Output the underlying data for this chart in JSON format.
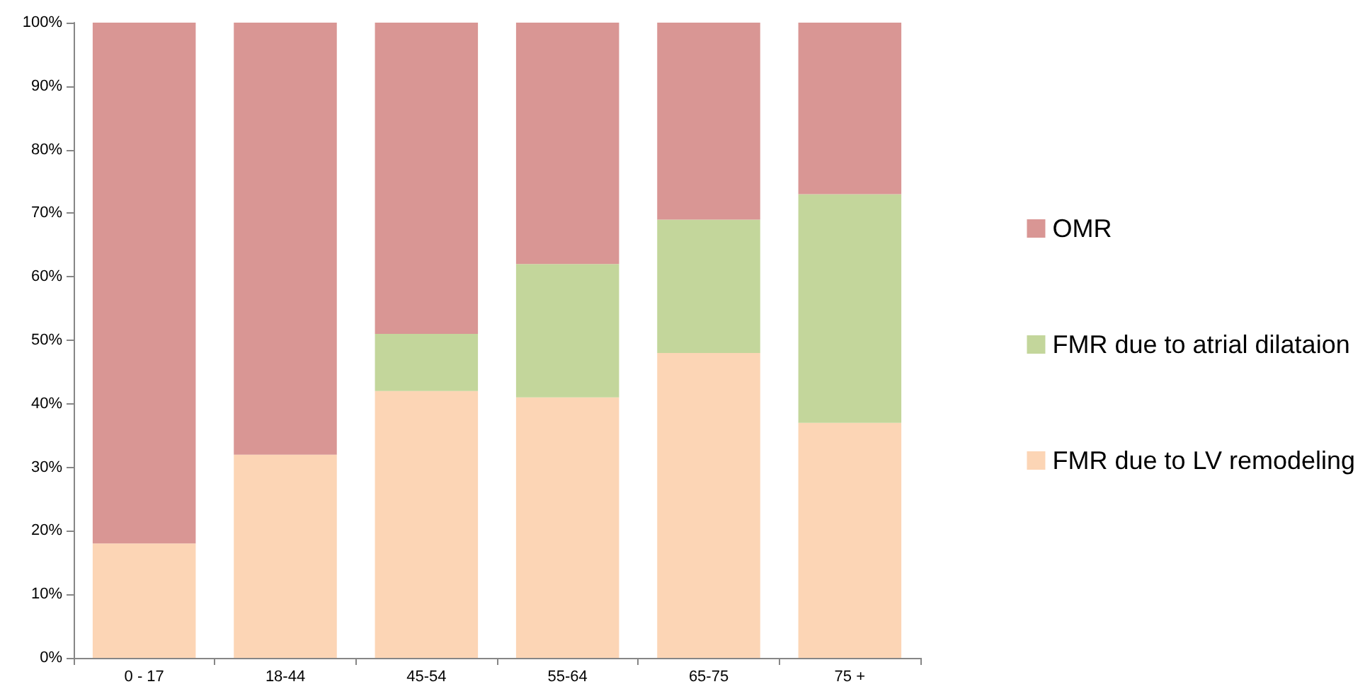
{
  "chart_data": {
    "type": "bar",
    "stacked": true,
    "categories": [
      "0 - 17",
      "18-44",
      "45-54",
      "55-64",
      "65-75",
      "75 +"
    ],
    "series": [
      {
        "name": "FMR due to LV remodeling",
        "color": "#fcd5b5",
        "values": [
          18,
          32,
          42,
          41,
          48,
          37
        ]
      },
      {
        "name": "FMR due to atrial dilataion",
        "color": "#c3d69b",
        "values": [
          0,
          0,
          9,
          21,
          21,
          36
        ]
      },
      {
        "name": "OMR",
        "color": "#d99694",
        "values": [
          82,
          68,
          49,
          38,
          31,
          27
        ]
      }
    ],
    "ylim": [
      0,
      100
    ],
    "yticks": [
      {
        "value": 0,
        "label": "0%"
      },
      {
        "value": 10,
        "label": "10%"
      },
      {
        "value": 20,
        "label": "20%"
      },
      {
        "value": 30,
        "label": "30%"
      },
      {
        "value": 40,
        "label": "40%"
      },
      {
        "value": 50,
        "label": "50%"
      },
      {
        "value": 60,
        "label": "60%"
      },
      {
        "value": 70,
        "label": "70%"
      },
      {
        "value": 80,
        "label": "80%"
      },
      {
        "value": 90,
        "label": "90%"
      },
      {
        "value": 100,
        "label": "100%"
      }
    ],
    "grid": false,
    "legend": "right"
  }
}
